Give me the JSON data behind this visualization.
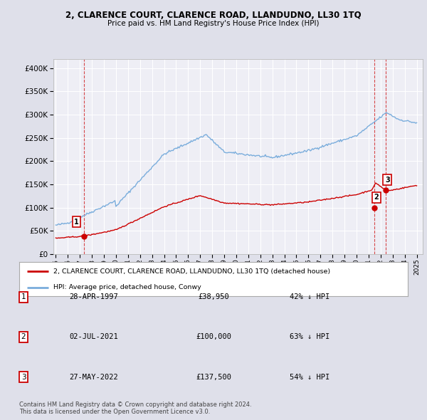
{
  "title": "2, CLARENCE COURT, CLARENCE ROAD, LLANDUDNO, LL30 1TQ",
  "subtitle": "Price paid vs. HM Land Registry's House Price Index (HPI)",
  "bg_color": "#dfe0ea",
  "plot_bg_color": "#eeeef5",
  "grid_color": "#ffffff",
  "sale_color": "#cc0000",
  "hpi_color": "#7aaddc",
  "ylim": [
    0,
    420000
  ],
  "xlim_start": 1994.8,
  "xlim_end": 2025.5,
  "xticks": [
    1995,
    1996,
    1997,
    1998,
    1999,
    2000,
    2001,
    2002,
    2003,
    2004,
    2005,
    2006,
    2007,
    2008,
    2009,
    2010,
    2011,
    2012,
    2013,
    2014,
    2015,
    2016,
    2017,
    2018,
    2019,
    2020,
    2021,
    2022,
    2023,
    2024,
    2025
  ],
  "yticks": [
    0,
    50000,
    100000,
    150000,
    200000,
    250000,
    300000,
    350000,
    400000
  ],
  "sale_dates": [
    1997.32,
    2021.5,
    2022.41
  ],
  "sale_prices": [
    38950,
    100000,
    137500
  ],
  "sale_labels": [
    "1",
    "2",
    "3"
  ],
  "legend_entries": [
    "2, CLARENCE COURT, CLARENCE ROAD, LLANDUDNO, LL30 1TQ (detached house)",
    "HPI: Average price, detached house, Conwy"
  ],
  "table_rows": [
    [
      "1",
      "28-APR-1997",
      "£38,950",
      "42% ↓ HPI"
    ],
    [
      "2",
      "02-JUL-2021",
      "£100,000",
      "63% ↓ HPI"
    ],
    [
      "3",
      "27-MAY-2022",
      "£137,500",
      "54% ↓ HPI"
    ]
  ],
  "footer": "Contains HM Land Registry data © Crown copyright and database right 2024.\nThis data is licensed under the Open Government Licence v3.0."
}
